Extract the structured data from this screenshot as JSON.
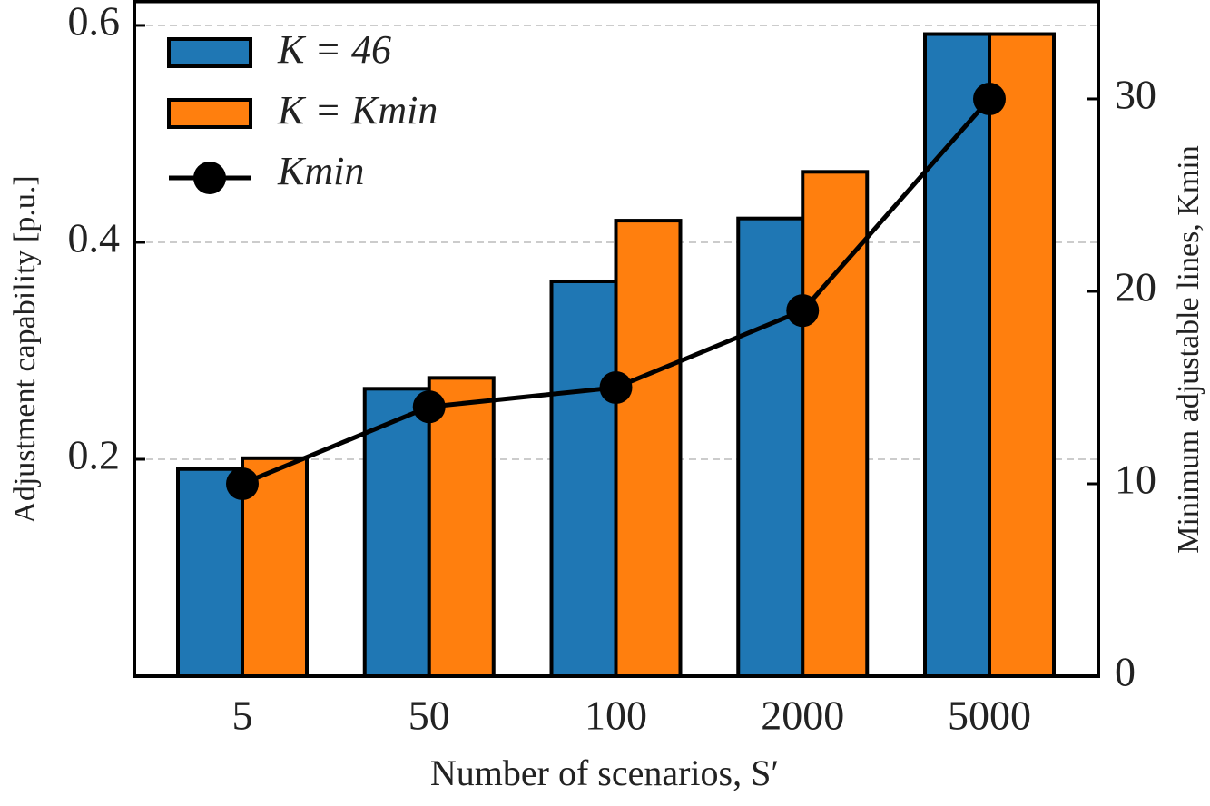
{
  "chart_data": {
    "type": "bar",
    "xlabel": "Number of scenarios, S′",
    "ylabel": "Adjustment capability [p.u.]",
    "y2label": "Minimum adjustable lines, Kmin",
    "categories": [
      "5",
      "50",
      "100",
      "2000",
      "5000"
    ],
    "series": [
      {
        "name": "K = 46",
        "type": "bar",
        "color": "#1f77b4",
        "values": [
          0.191,
          0.265,
          0.364,
          0.422,
          0.592
        ]
      },
      {
        "name": "K = Kmin",
        "type": "bar",
        "color": "#ff7f0e",
        "values": [
          0.201,
          0.275,
          0.42,
          0.465,
          0.592
        ]
      },
      {
        "name": "Kmin",
        "type": "line",
        "axis": "y2",
        "color": "#000000",
        "values": [
          10,
          14,
          15,
          19,
          30
        ]
      }
    ],
    "ylim": [
      0,
      0.6234
    ],
    "yticks": [
      0.2,
      0.4,
      0.6
    ],
    "y2lim": [
      0,
      35.14
    ],
    "y2ticks": [
      0,
      10,
      20,
      30
    ],
    "grid": true,
    "legend": "upper left"
  }
}
